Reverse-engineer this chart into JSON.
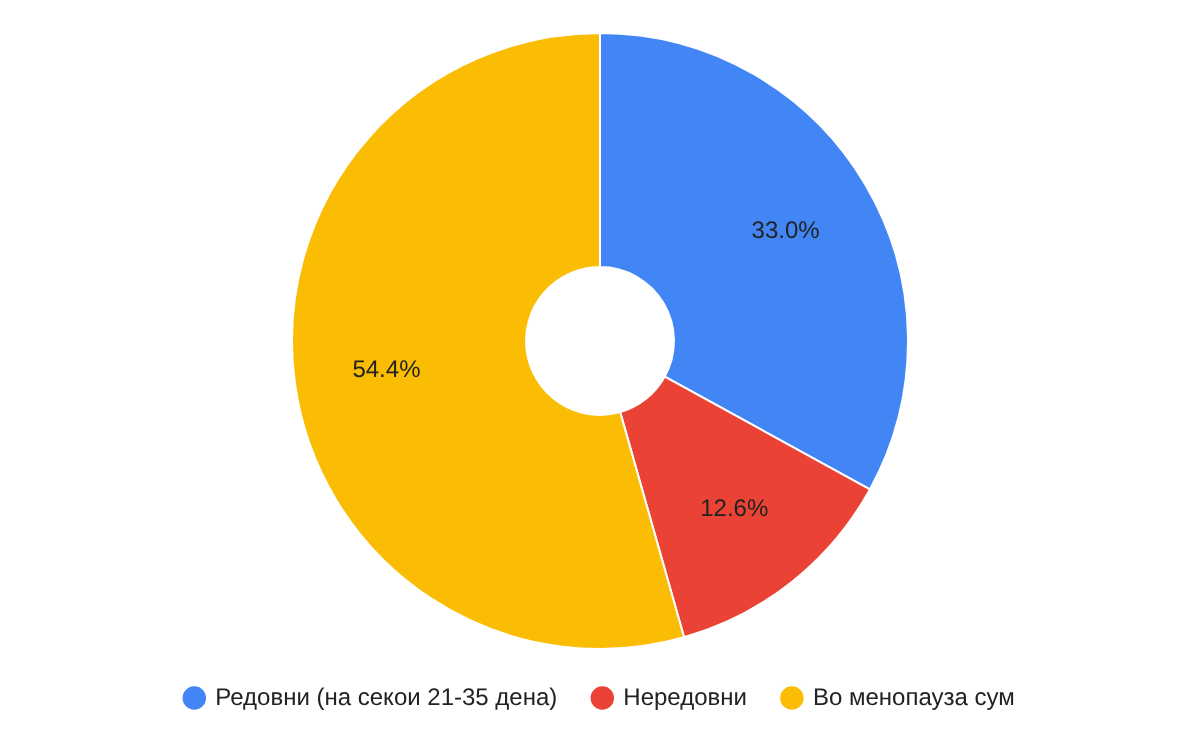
{
  "chart_data": {
    "type": "donut",
    "categories": [
      "Редовни (на секои 21-35 дена)",
      "Нередовни",
      "Во менопауза сум"
    ],
    "values": [
      33.0,
      12.6,
      54.4
    ],
    "colors": [
      "#4285f4",
      "#ea4335",
      "#fbbc04"
    ],
    "value_labels": [
      "33.0%",
      "12.6%",
      "54.4%"
    ],
    "legend": "bottom"
  }
}
